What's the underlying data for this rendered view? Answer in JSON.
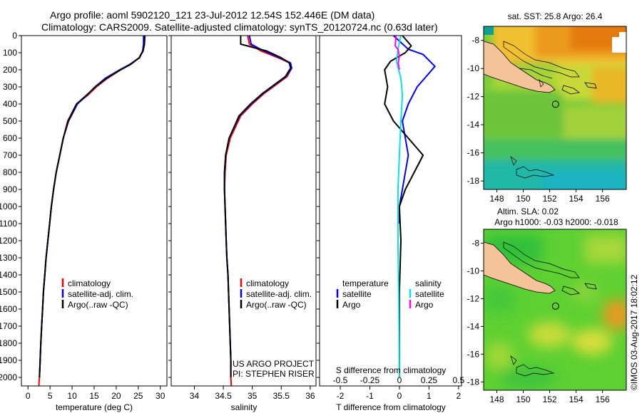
{
  "header": {
    "title_line1": "Argo profile: aoml 5902120_121 23-Jul-2012 12.54S 152.446E (DM data)",
    "title_line2": "Climatology: CARS2009. Satellite-adjusted climatology: synTS_20120724.nc (0.63d later)"
  },
  "colors": {
    "climatology": "#ff0000",
    "satellite": "#0000ff",
    "argo": "#000000",
    "sal_satellite": "#00e5e5",
    "sal_argo": "#ff00ff"
  },
  "depth_axis": {
    "range": [
      0,
      2050
    ],
    "ticks": [
      0,
      100,
      200,
      300,
      400,
      500,
      600,
      700,
      800,
      900,
      1000,
      1100,
      1200,
      1300,
      1400,
      1500,
      1600,
      1700,
      1800,
      1900,
      2000
    ]
  },
  "chart_data": [
    {
      "id": "temperature",
      "type": "line",
      "xlabel": "temperature (deg C)",
      "xlim": [
        -1.5,
        31.5
      ],
      "ylim": [
        0,
        2050
      ],
      "xticks": [
        0,
        5,
        10,
        15,
        20,
        25,
        30
      ],
      "series": [
        {
          "name": "climatology",
          "color": "#ff0000",
          "x": [
            26.4,
            26.3,
            26.0,
            25.3,
            23.0,
            21.0,
            18.0,
            15.5,
            13.5,
            11.0,
            9.0,
            8.0,
            7.2,
            6.4,
            5.8,
            5.3,
            4.9,
            4.5,
            4.1,
            3.8,
            3.5,
            3.3,
            3.1,
            2.9,
            2.75,
            2.6,
            2.5,
            2.45
          ],
          "y": [
            0,
            50,
            90,
            130,
            170,
            200,
            250,
            300,
            350,
            400,
            500,
            600,
            700,
            800,
            900,
            1000,
            1100,
            1200,
            1300,
            1400,
            1500,
            1600,
            1700,
            1800,
            1900,
            2000,
            2030,
            2060
          ]
        },
        {
          "name": "satellite-adj. clim.",
          "color": "#0000ff",
          "x": [
            26.2,
            26.2,
            26.0,
            25.2,
            23.0,
            20.8,
            17.5,
            15.2,
            13.3,
            11.2,
            9.2,
            8.0,
            7.2,
            6.4,
            5.8,
            5.3,
            4.9,
            4.5,
            4.1,
            3.8,
            3.5,
            3.3,
            3.1,
            2.9,
            2.75,
            2.6
          ],
          "y": [
            0,
            50,
            90,
            130,
            170,
            200,
            250,
            300,
            350,
            400,
            500,
            600,
            700,
            800,
            900,
            1000,
            1100,
            1200,
            1300,
            1400,
            1500,
            1600,
            1700,
            1800,
            1900,
            2000
          ]
        },
        {
          "name": "Argo(..raw -QC)",
          "color": "#000000",
          "x": [
            26.5,
            26.4,
            26.1,
            25.2,
            23.2,
            21.0,
            17.8,
            15.3,
            13.2,
            11.0,
            9.1,
            8.0,
            7.2,
            6.4,
            5.8,
            5.3,
            4.9,
            4.5,
            4.1,
            3.8,
            3.5,
            3.3,
            3.1,
            2.9,
            2.75,
            2.6
          ],
          "y": [
            0,
            50,
            90,
            130,
            170,
            200,
            250,
            300,
            350,
            400,
            500,
            600,
            700,
            800,
            900,
            1000,
            1100,
            1200,
            1300,
            1400,
            1500,
            1600,
            1700,
            1800,
            1900,
            2000
          ]
        }
      ],
      "legend": {
        "position": "center-right",
        "entries": [
          "climatology",
          "satellite-adj. clim.",
          "Argo(..raw -QC)"
        ]
      }
    },
    {
      "id": "salinity",
      "type": "line",
      "xlabel": "salinity",
      "xlim": [
        33.6,
        36.1
      ],
      "ylim": [
        0,
        2050
      ],
      "xticks": [
        34,
        34.5,
        35,
        35.5,
        36
      ],
      "series": [
        {
          "name": "climatology",
          "color": "#ff0000",
          "x": [
            34.92,
            34.95,
            35.15,
            35.45,
            35.65,
            35.68,
            35.6,
            35.4,
            35.2,
            35.0,
            34.8,
            34.62,
            34.55,
            34.53,
            34.52,
            34.53,
            34.54,
            34.55,
            34.56,
            34.58,
            34.59,
            34.6,
            34.61,
            34.62,
            34.63,
            34.63,
            34.64
          ],
          "y": [
            0,
            50,
            90,
            130,
            160,
            190,
            240,
            290,
            340,
            400,
            470,
            600,
            700,
            800,
            900,
            1000,
            1100,
            1200,
            1300,
            1400,
            1500,
            1600,
            1700,
            1800,
            1900,
            2000,
            2060
          ]
        },
        {
          "name": "satellite-adj. clim.",
          "color": "#0000ff",
          "x": [
            34.95,
            34.98,
            35.2,
            35.48,
            35.66,
            35.68,
            35.58,
            35.38,
            35.18,
            34.98,
            34.78,
            34.6,
            34.54,
            34.52,
            34.52,
            34.53,
            34.54,
            34.55,
            34.56,
            34.58,
            34.59,
            34.6,
            34.61,
            34.62,
            34.63,
            34.63
          ],
          "y": [
            0,
            50,
            90,
            130,
            160,
            190,
            240,
            290,
            340,
            400,
            470,
            600,
            700,
            800,
            900,
            1000,
            1100,
            1200,
            1300,
            1400,
            1500,
            1600,
            1700,
            1800,
            1900,
            2000
          ]
        },
        {
          "name": "Argo(..raw -QC)",
          "color": "#000000",
          "x": [
            34.8,
            34.8,
            35.25,
            35.5,
            35.64,
            35.66,
            35.57,
            35.37,
            35.17,
            34.97,
            34.77,
            34.6,
            34.54,
            34.52,
            34.52,
            34.53,
            34.54,
            34.55,
            34.56,
            34.58,
            34.59,
            34.6,
            34.61,
            34.62,
            34.63,
            34.63
          ],
          "y": [
            0,
            50,
            90,
            130,
            160,
            190,
            240,
            290,
            340,
            400,
            470,
            600,
            700,
            800,
            900,
            1000,
            1100,
            1200,
            1300,
            1400,
            1500,
            1600,
            1700,
            1800,
            1900,
            2000
          ]
        }
      ],
      "legend": {
        "position": "center-right",
        "entries": [
          "climatology",
          "satellite-adj. clim.",
          "Argo(..raw -QC)"
        ]
      },
      "annotation_line1": "US ARGO PROJECT",
      "annotation_line2": "PI: STEPHEN RISER"
    },
    {
      "id": "differences",
      "type": "line",
      "xlabel": "T difference from climatology",
      "xlabel_top": "S difference from climatology",
      "xlim": [
        -2.7,
        2.1
      ],
      "ylim": [
        0,
        2050
      ],
      "xticks": [
        -2,
        -1,
        0,
        1,
        2
      ],
      "s_ticks": [
        -0.5,
        -0.25,
        0,
        0.25,
        0.5
      ],
      "s_scale": 4,
      "series": [
        {
          "name": "temperature satellite",
          "color": "#0000ff",
          "x": [
            -0.2,
            0.3,
            0.8,
            1.2,
            0.9,
            0.6,
            0.3,
            0.1,
            0.2,
            0.3,
            0.2,
            0.1,
            0.0,
            0.0
          ],
          "y": [
            0,
            80,
            110,
            180,
            240,
            300,
            400,
            500,
            600,
            700,
            800,
            900,
            1000,
            1100
          ]
        },
        {
          "name": "temperature Argo",
          "color": "#000000",
          "x": [
            0.1,
            0.4,
            0.2,
            -0.3,
            -0.5,
            -0.4,
            -0.5,
            -0.2,
            0.3,
            0.8,
            0.5,
            0.2,
            0.0,
            0.05,
            0.0,
            0.0,
            0.0
          ],
          "y": [
            0,
            60,
            100,
            150,
            200,
            300,
            400,
            500,
            600,
            700,
            800,
            900,
            1000,
            1200,
            1500,
            1800,
            2000
          ]
        },
        {
          "name": "salinity satellite",
          "color": "#00e5e5",
          "x": [
            0.05,
            -0.05,
            -0.1,
            0.05,
            0.1,
            0.05,
            0.0,
            -0.05,
            -0.05,
            -0.02,
            0.0
          ],
          "y": [
            0,
            80,
            150,
            250,
            350,
            500,
            700,
            900,
            1200,
            1600,
            2000
          ]
        },
        {
          "name": "salinity Argo",
          "color": "#ff00ff",
          "x": [
            -0.12,
            -0.14,
            -0.05,
            0.0,
            -0.04,
            0.0
          ],
          "y": [
            0,
            60,
            80,
            120,
            160,
            200
          ]
        }
      ],
      "legend_temperature": {
        "title": "temperature",
        "entries": [
          "satellite",
          "Argo"
        ]
      },
      "legend_salinity": {
        "title": "salinity",
        "entries": [
          "satellite",
          "Argo"
        ]
      }
    }
  ],
  "maps": {
    "sst": {
      "title": "sat. SST: 25.8 Argo: 26.4",
      "lat_ticks": [
        -8,
        -10,
        -12,
        -14,
        -16,
        -18
      ],
      "lon_ticks": [
        148,
        150,
        152,
        154,
        156
      ],
      "lon_range": [
        147,
        157.8
      ],
      "lat_range": [
        -7,
        -18.6
      ],
      "float_position": {
        "lon": 152.446,
        "lat": -12.54
      }
    },
    "sla": {
      "title_line1": "Altim. SLA: 0.02",
      "title_line2": "Argo h1000: -0.03 h2000: -0.018",
      "lat_ticks": [
        -8,
        -10,
        -12,
        -14,
        -16,
        -18
      ],
      "lon_ticks": [
        148,
        150,
        152,
        154,
        156
      ],
      "lon_range": [
        147,
        157.8
      ],
      "lat_range": [
        -7,
        -18.6
      ],
      "float_position": {
        "lon": 152.446,
        "lat": -12.54
      }
    },
    "credit": "©IMOS 03-Aug-2017 18:02:12"
  }
}
